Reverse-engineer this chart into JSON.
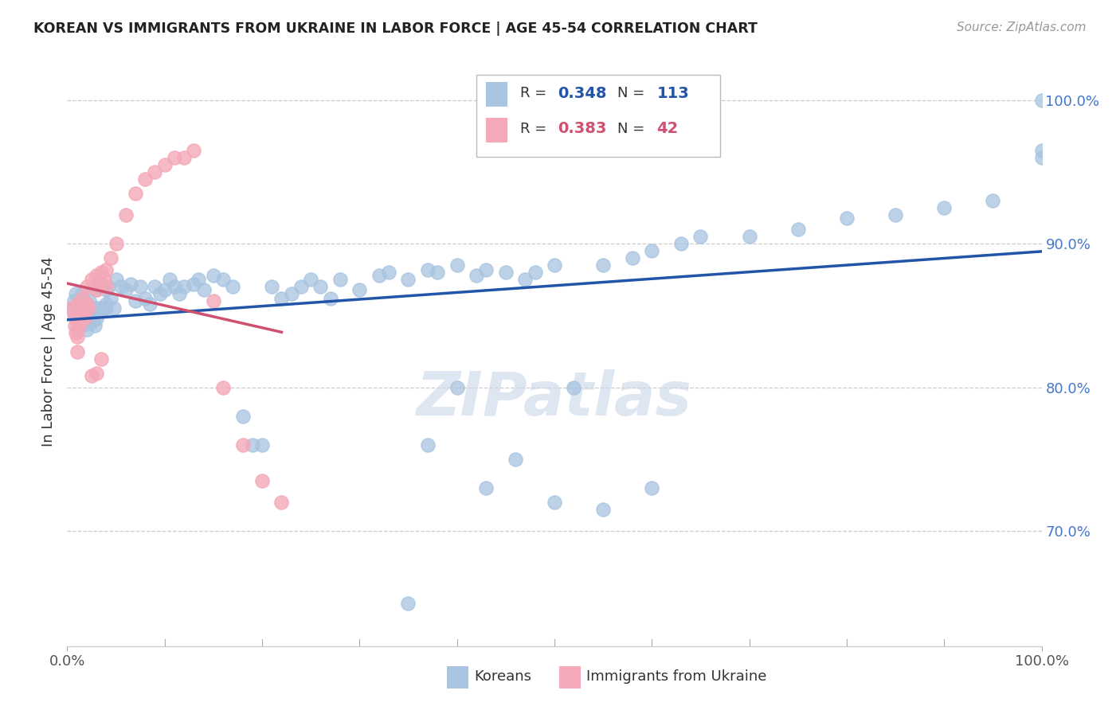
{
  "title": "KOREAN VS IMMIGRANTS FROM UKRAINE IN LABOR FORCE | AGE 45-54 CORRELATION CHART",
  "source": "Source: ZipAtlas.com",
  "ylabel": "In Labor Force | Age 45-54",
  "ytick_labels": [
    "70.0%",
    "80.0%",
    "90.0%",
    "100.0%"
  ],
  "ytick_values": [
    0.7,
    0.8,
    0.9,
    1.0
  ],
  "xlim": [
    0.0,
    1.0
  ],
  "ylim": [
    0.62,
    1.03
  ],
  "koreans_color": "#a8c4e0",
  "ukraine_color": "#f4a8b8",
  "koreans_line_color": "#2255aa",
  "ukraine_line_color": "#d05070",
  "R_korean": 0.348,
  "N_korean": 113,
  "R_ukraine": 0.383,
  "N_ukraine": 42,
  "watermark": "ZIPatlas",
  "watermark_color": "#c8d8e8",
  "koreans_x": [
    0.005,
    0.007,
    0.008,
    0.009,
    0.01,
    0.01,
    0.01,
    0.01,
    0.01,
    0.01,
    0.012,
    0.013,
    0.015,
    0.015,
    0.015,
    0.015,
    0.015,
    0.016,
    0.017,
    0.018,
    0.02,
    0.02,
    0.02,
    0.02,
    0.02,
    0.022,
    0.023,
    0.024,
    0.025,
    0.025,
    0.027,
    0.028,
    0.03,
    0.03,
    0.03,
    0.032,
    0.034,
    0.035,
    0.038,
    0.04,
    0.04,
    0.04,
    0.042,
    0.045,
    0.048,
    0.05,
    0.055,
    0.06,
    0.065,
    0.07,
    0.075,
    0.08,
    0.085,
    0.09,
    0.095,
    0.1,
    0.105,
    0.11,
    0.115,
    0.12,
    0.13,
    0.135,
    0.14,
    0.15,
    0.16,
    0.17,
    0.18,
    0.19,
    0.2,
    0.21,
    0.22,
    0.23,
    0.24,
    0.25,
    0.26,
    0.27,
    0.28,
    0.3,
    0.32,
    0.33,
    0.35,
    0.37,
    0.38,
    0.4,
    0.42,
    0.43,
    0.45,
    0.47,
    0.48,
    0.5,
    0.52,
    0.55,
    0.58,
    0.6,
    0.63,
    0.65,
    0.7,
    0.75,
    0.8,
    0.85,
    0.9,
    0.95,
    1.0,
    1.0,
    1.0,
    0.35,
    0.37,
    0.4,
    0.43,
    0.46,
    0.5,
    0.55,
    0.6
  ],
  "koreans_y": [
    0.855,
    0.86,
    0.85,
    0.865,
    0.84,
    0.855,
    0.848,
    0.852,
    0.84,
    0.858,
    0.845,
    0.86,
    0.855,
    0.848,
    0.843,
    0.858,
    0.865,
    0.862,
    0.855,
    0.85,
    0.855,
    0.848,
    0.852,
    0.84,
    0.858,
    0.845,
    0.86,
    0.85,
    0.855,
    0.845,
    0.848,
    0.843,
    0.868,
    0.855,
    0.848,
    0.87,
    0.855,
    0.872,
    0.855,
    0.868,
    0.855,
    0.858,
    0.87,
    0.862,
    0.855,
    0.875,
    0.87,
    0.868,
    0.872,
    0.86,
    0.87,
    0.862,
    0.858,
    0.87,
    0.865,
    0.868,
    0.875,
    0.87,
    0.865,
    0.87,
    0.872,
    0.875,
    0.868,
    0.878,
    0.875,
    0.87,
    0.78,
    0.76,
    0.76,
    0.87,
    0.862,
    0.865,
    0.87,
    0.875,
    0.87,
    0.862,
    0.875,
    0.868,
    0.878,
    0.88,
    0.875,
    0.882,
    0.88,
    0.885,
    0.878,
    0.882,
    0.88,
    0.875,
    0.88,
    0.885,
    0.8,
    0.885,
    0.89,
    0.895,
    0.9,
    0.905,
    0.905,
    0.91,
    0.918,
    0.92,
    0.925,
    0.93,
    0.96,
    0.965,
    1.0,
    0.65,
    0.76,
    0.8,
    0.73,
    0.75,
    0.72,
    0.715,
    0.73
  ],
  "ukraine_x": [
    0.005,
    0.007,
    0.008,
    0.009,
    0.01,
    0.01,
    0.01,
    0.01,
    0.012,
    0.013,
    0.015,
    0.016,
    0.018,
    0.02,
    0.02,
    0.022,
    0.025,
    0.03,
    0.03,
    0.032,
    0.035,
    0.038,
    0.04,
    0.04,
    0.045,
    0.05,
    0.06,
    0.07,
    0.08,
    0.09,
    0.1,
    0.11,
    0.12,
    0.13,
    0.15,
    0.16,
    0.18,
    0.2,
    0.22,
    0.025,
    0.03,
    0.035
  ],
  "ukraine_y": [
    0.855,
    0.85,
    0.843,
    0.838,
    0.858,
    0.845,
    0.835,
    0.825,
    0.842,
    0.848,
    0.862,
    0.855,
    0.848,
    0.87,
    0.858,
    0.855,
    0.875,
    0.878,
    0.868,
    0.872,
    0.88,
    0.875,
    0.882,
    0.87,
    0.89,
    0.9,
    0.92,
    0.935,
    0.945,
    0.95,
    0.955,
    0.96,
    0.96,
    0.965,
    0.86,
    0.8,
    0.76,
    0.735,
    0.72,
    0.808,
    0.81,
    0.82
  ]
}
